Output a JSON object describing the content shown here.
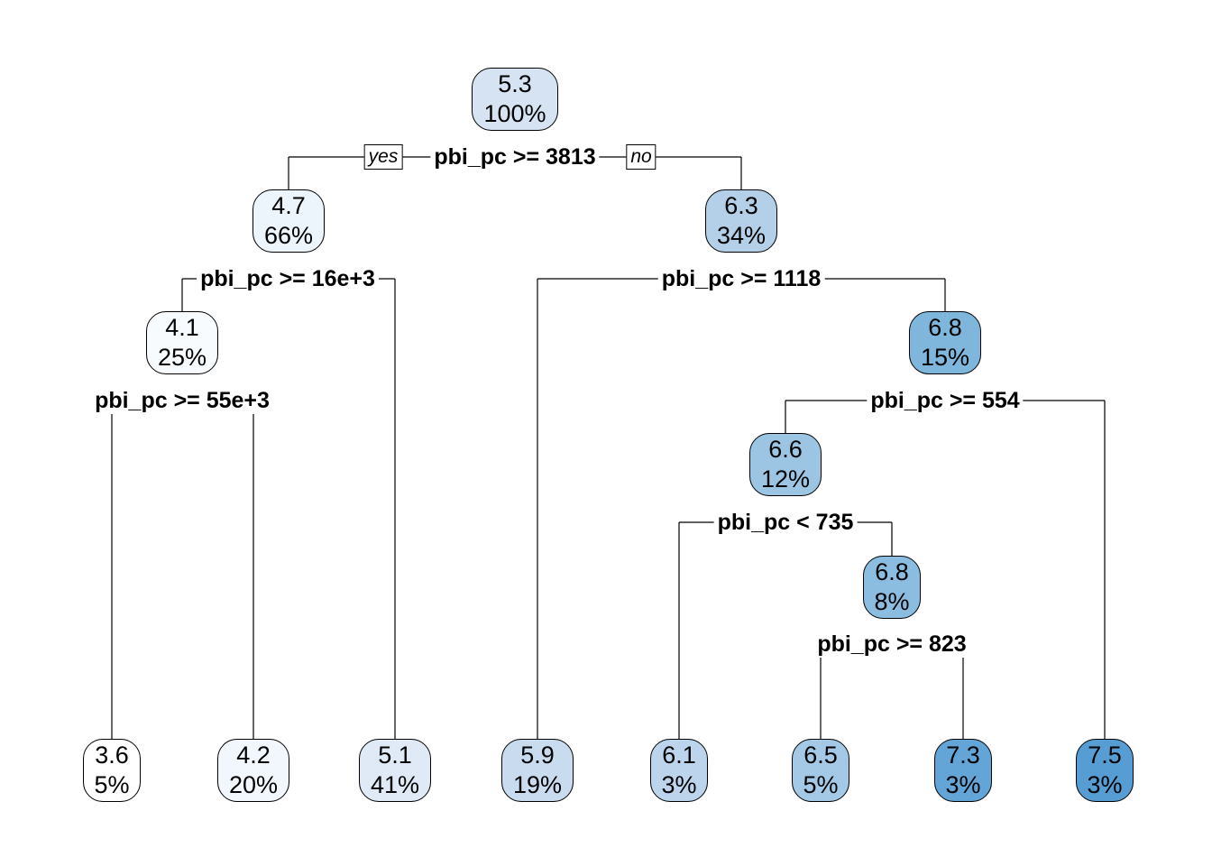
{
  "nodes": [
    {
      "id": "root",
      "value": "5.3",
      "pct": "100%",
      "color": "#d5e3f2"
    },
    {
      "id": "n2",
      "value": "4.7",
      "pct": "66%",
      "color": "#ecf4fc"
    },
    {
      "id": "n3",
      "value": "6.3",
      "pct": "34%",
      "color": "#b3d0e8"
    },
    {
      "id": "n4",
      "value": "4.1",
      "pct": "25%",
      "color": "#f8fbfe"
    },
    {
      "id": "n7",
      "value": "6.8",
      "pct": "15%",
      "color": "#7fb6dc"
    },
    {
      "id": "n14",
      "value": "6.6",
      "pct": "12%",
      "color": "#9bc5e3"
    },
    {
      "id": "n29",
      "value": "6.8",
      "pct": "8%",
      "color": "#8bbde0"
    },
    {
      "id": "l1",
      "value": "3.6",
      "pct": "5%",
      "color": "#ffffff"
    },
    {
      "id": "l2",
      "value": "4.2",
      "pct": "20%",
      "color": "#f1f7fd"
    },
    {
      "id": "l3",
      "value": "5.1",
      "pct": "41%",
      "color": "#dfeaf6"
    },
    {
      "id": "l4",
      "value": "5.9",
      "pct": "19%",
      "color": "#c9dcef"
    },
    {
      "id": "l5",
      "value": "6.1",
      "pct": "3%",
      "color": "#bcd5ec"
    },
    {
      "id": "l6",
      "value": "6.5",
      "pct": "5%",
      "color": "#a4c9e6"
    },
    {
      "id": "l7",
      "value": "7.3",
      "pct": "3%",
      "color": "#62a5d6"
    },
    {
      "id": "l8",
      "value": "7.5",
      "pct": "3%",
      "color": "#559dd3"
    }
  ],
  "splits": [
    {
      "id": "s_root",
      "label": "pbi_pc >= 3813"
    },
    {
      "id": "s_n2",
      "label": "pbi_pc >= 16e+3"
    },
    {
      "id": "s_n3",
      "label": "pbi_pc >= 1118"
    },
    {
      "id": "s_n4",
      "label": "pbi_pc >= 55e+3"
    },
    {
      "id": "s_n7",
      "label": "pbi_pc >= 554"
    },
    {
      "id": "s_n14",
      "label": "pbi_pc < 735"
    },
    {
      "id": "s_n29",
      "label": "pbi_pc >= 823"
    }
  ],
  "branch_labels": {
    "yes": "yes",
    "no": "no"
  },
  "edge_color": "#000000"
}
